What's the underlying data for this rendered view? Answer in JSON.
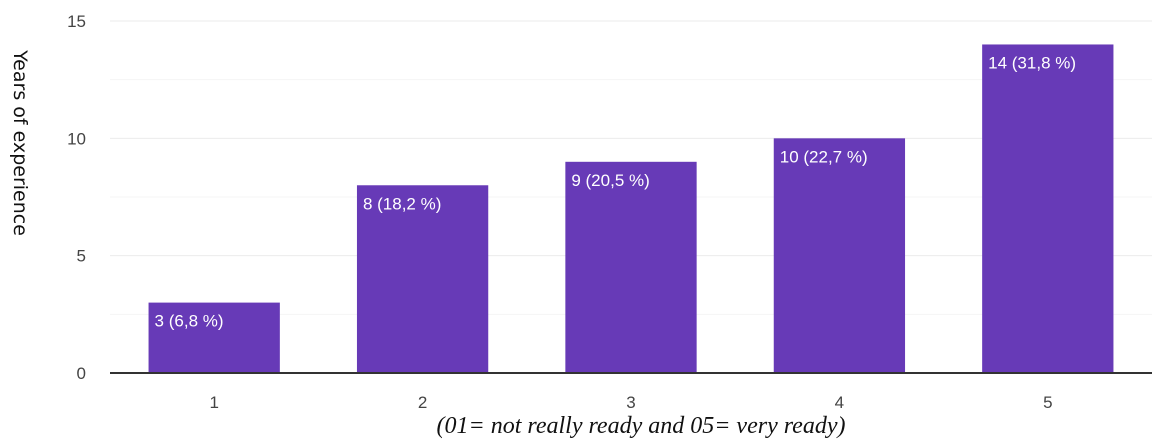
{
  "chart_data": {
    "type": "bar",
    "categories": [
      "1",
      "2",
      "3",
      "4",
      "5"
    ],
    "values": [
      3,
      8,
      9,
      10,
      14
    ],
    "data_labels": [
      "3 (6,8 %)",
      "8 (18,2 %)",
      "9 (20,5 %)",
      "10 (22,7 %)",
      "14 (31,8 %)"
    ],
    "xlabel": "(01= not really ready and 05= very ready)",
    "ylabel": "Years of experience",
    "ylim": [
      0,
      15
    ],
    "yticks": [
      0,
      5,
      10,
      15
    ],
    "grid": true,
    "legend": "none",
    "colors": {
      "bar": "#673ab7",
      "grid": "#ebebeb",
      "axis": "#333333"
    }
  }
}
